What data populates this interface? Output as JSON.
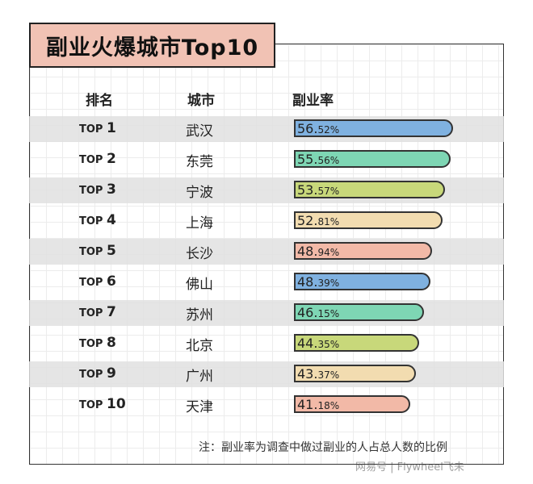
{
  "chart_data": {
    "type": "bar",
    "title": "副业火爆城市Top10",
    "columns": [
      "排名",
      "城市",
      "副业率"
    ],
    "rank_prefix": "TOP",
    "ranks": [
      "1",
      "2",
      "3",
      "4",
      "5",
      "6",
      "7",
      "8",
      "9",
      "10"
    ],
    "categories": [
      "武汉",
      "东莞",
      "宁波",
      "上海",
      "长沙",
      "佛山",
      "苏州",
      "北京",
      "广州",
      "天津"
    ],
    "values": [
      56.52,
      55.56,
      53.57,
      52.81,
      48.94,
      48.39,
      46.15,
      44.35,
      43.37,
      41.18
    ],
    "value_labels_big": [
      "56.",
      "55.",
      "53.",
      "52.",
      "48.",
      "48.",
      "46.",
      "44.",
      "43.",
      "41."
    ],
    "value_labels_small": [
      "52%",
      "56%",
      "57%",
      "81%",
      "94%",
      "39%",
      "15%",
      "35%",
      "37%",
      "18%"
    ],
    "colors": [
      "#7fb1e0",
      "#7ed6b4",
      "#c8d87a",
      "#f2dcb0",
      "#f2b9a7",
      "#7fb1e0",
      "#7ed6b4",
      "#c8d87a",
      "#f2dcb0",
      "#f2b9a7"
    ],
    "note": "注：副业率为调查中做过副业的人占总人数的比例"
  },
  "watermark": "网易号 | Flywheel飞未"
}
